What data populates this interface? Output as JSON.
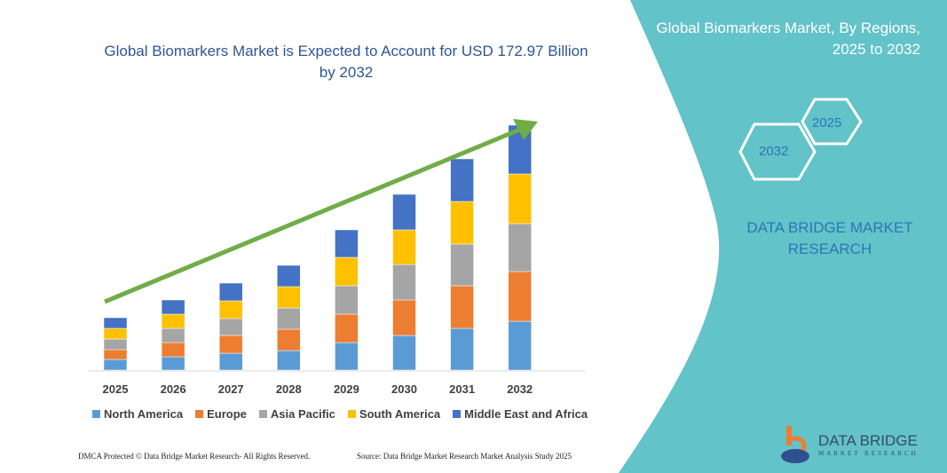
{
  "chart_data": {
    "type": "bar",
    "stacked": true,
    "title": "Global Biomarkers Market is Expected to Account for USD 172.97 Billion by 2032",
    "categories": [
      "2025",
      "2026",
      "2027",
      "2028",
      "2029",
      "2030",
      "2031",
      "2032"
    ],
    "series": [
      {
        "name": "North America",
        "color": "#5b9bd5",
        "values": [
          12,
          15,
          19,
          22,
          31,
          39,
          47,
          55
        ]
      },
      {
        "name": "Europe",
        "color": "#ed7d31",
        "values": [
          11,
          16,
          20,
          24,
          32,
          40,
          48,
          56
        ]
      },
      {
        "name": "Asia Pacific",
        "color": "#a5a5a5",
        "values": [
          12,
          16,
          19,
          24,
          32,
          40,
          47,
          54
        ]
      },
      {
        "name": "South America",
        "color": "#ffc000",
        "values": [
          12,
          16,
          20,
          24,
          32,
          39,
          48,
          56
        ]
      },
      {
        "name": "Middle East and Africa",
        "color": "#4472c4",
        "values": [
          12,
          16,
          20,
          24,
          31,
          40,
          48,
          55
        ]
      }
    ],
    "xlabel": "",
    "ylabel": "",
    "grid": false,
    "legend": "bottom",
    "trend_arrow_color": "#70ad47"
  },
  "side": {
    "title": "Global Biomarkers Market, By Regions, 2025 to 2032",
    "hex1": "2025",
    "hex2": "2032",
    "brand": "DATA BRIDGE MARKET RESEARCH",
    "panel_color": "#62c3c9"
  },
  "logo": {
    "name": "DATA BRIDGE",
    "sub": "MARKET RESEARCH"
  },
  "footer": {
    "left": "DMCA Protected © Data Bridge Market Research- All Rights Reserved.",
    "right": "Source: Data Bridge Market Research Market Analysis Study 2025"
  }
}
